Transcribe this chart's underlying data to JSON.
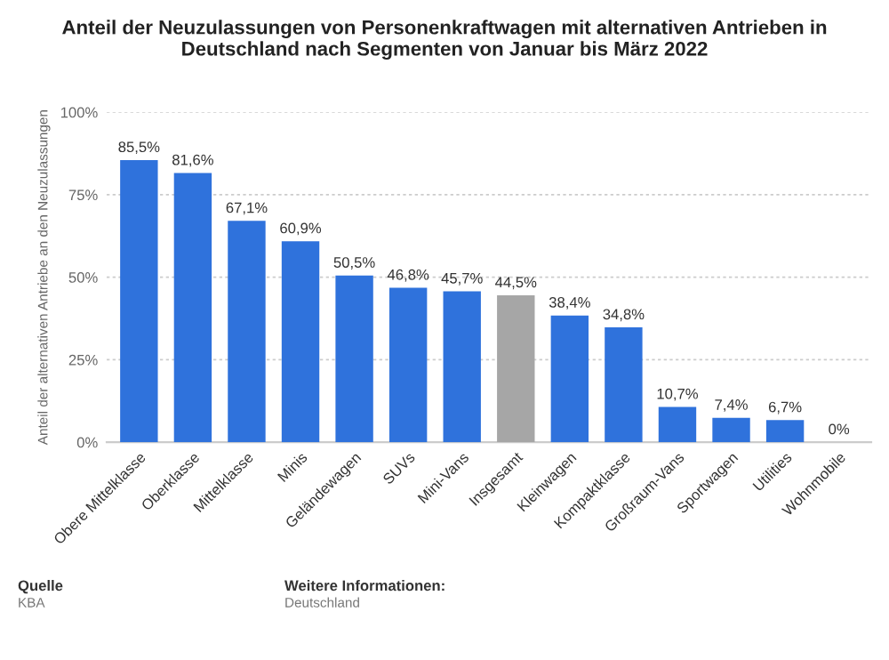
{
  "chart_data": {
    "type": "bar",
    "title": "Anteil der Neuzulassungen von Personenkraftwagen mit alternativen Antrieben in Deutschland nach Segmenten von Januar bis März 2022",
    "ylabel": "Anteil der alternativen Antriebe an den Neuzulassungen",
    "categories": [
      "Obere Mittelklasse",
      "Oberklasse",
      "Mittelklasse",
      "Minis",
      "Geländewagen",
      "SUVs",
      "Mini-Vans",
      "Insgesamt",
      "Kleinwagen",
      "Kompaktklasse",
      "Großraum-Vans",
      "Sportwagen",
      "Utilities",
      "Wohnmobile"
    ],
    "values": [
      85.5,
      81.6,
      67.1,
      60.9,
      50.5,
      46.8,
      45.7,
      44.5,
      38.4,
      34.8,
      10.7,
      7.4,
      6.7,
      0
    ],
    "value_labels": [
      "85,5%",
      "81,6%",
      "67,1%",
      "60,9%",
      "50,5%",
      "46,8%",
      "45,7%",
      "44,5%",
      "38,4%",
      "34,8%",
      "10,7%",
      "7,4%",
      "6,7%",
      "0%"
    ],
    "colors": [
      "#2f72dc",
      "#2f72dc",
      "#2f72dc",
      "#2f72dc",
      "#2f72dc",
      "#2f72dc",
      "#2f72dc",
      "#a6a6a6",
      "#2f72dc",
      "#2f72dc",
      "#2f72dc",
      "#2f72dc",
      "#2f72dc",
      "#2f72dc"
    ],
    "ylim": [
      0,
      100
    ],
    "yticks": [
      {
        "value": 0,
        "label": "0%"
      },
      {
        "value": 25,
        "label": "25%"
      },
      {
        "value": 50,
        "label": "50%"
      },
      {
        "value": 75,
        "label": "75%"
      },
      {
        "value": 100,
        "label": "100%"
      }
    ],
    "grid": "y",
    "annotations": [
      "Quelle",
      "KBA",
      "Weitere Informationen:",
      "Deutschland"
    ]
  }
}
